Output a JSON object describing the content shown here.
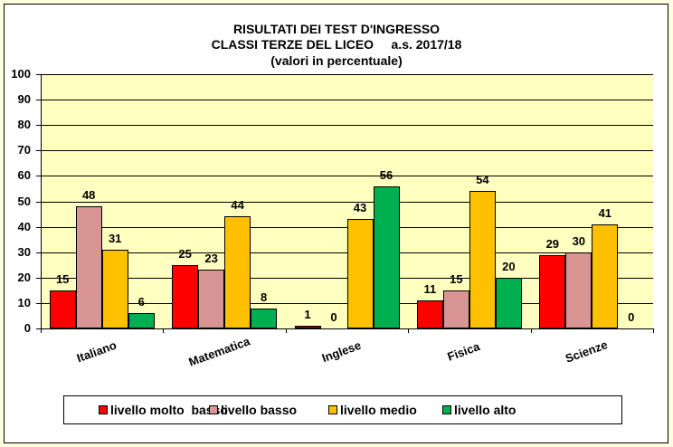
{
  "chart_data": {
    "type": "bar",
    "title": "RISULTATI DEI TEST D'INGRESSO",
    "subtitle": "CLASSI TERZE DEL LICEO     a.s. 2017/18",
    "subtitle2": "(valori in percentuale)",
    "xlabel": "",
    "ylabel": "",
    "ylim": [
      0,
      100
    ],
    "yticks": [
      0,
      10,
      20,
      30,
      40,
      50,
      60,
      70,
      80,
      90,
      100
    ],
    "grid": true,
    "legend_position": "bottom",
    "categories": [
      "Italiano",
      "Matematica",
      "Inglese",
      "Fisica",
      "Scienze"
    ],
    "series": [
      {
        "name": "livello molto  basso",
        "color": "#ff0000",
        "values": [
          15,
          25,
          1,
          11,
          29
        ]
      },
      {
        "name": "livello basso",
        "color": "#d99594",
        "values": [
          48,
          23,
          0,
          15,
          30
        ]
      },
      {
        "name": "livello medio",
        "color": "#ffc000",
        "values": [
          31,
          44,
          43,
          54,
          41
        ]
      },
      {
        "name": "livello alto",
        "color": "#00b050",
        "values": [
          6,
          8,
          56,
          20,
          0
        ]
      }
    ]
  }
}
